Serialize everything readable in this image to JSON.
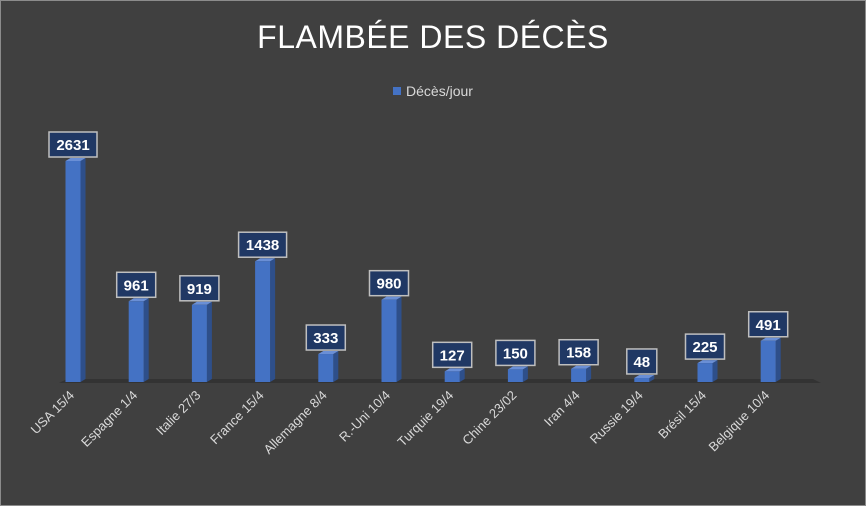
{
  "chart_data": {
    "type": "bar",
    "title": "FLAMBÉE DES DÉCÈS",
    "categories": [
      "USA 15/4",
      "Espagne 1/4",
      "Italie 27/3",
      "France 15/4",
      "Allemagne 8/4",
      "R.-Uni 10/4",
      "Turquie 19/4",
      "Chine 23/02",
      "Iran 4/4",
      "Russie 19/4",
      "Brésil 15/4",
      "Belgique 10/4"
    ],
    "series": [
      {
        "name": "Décès/jour",
        "values": [
          2631,
          961,
          919,
          1438,
          333,
          980,
          127,
          150,
          158,
          48,
          225,
          491
        ]
      }
    ],
    "data_labels": [
      "2631",
      "961",
      "919",
      "1438",
      "333",
      "980",
      "127",
      "150",
      "158",
      "48",
      "225",
      "491"
    ],
    "ylim": [
      0,
      2800
    ],
    "grid": false,
    "legend_position": "top",
    "style": "3d-column",
    "colors": {
      "background": "#404040",
      "bar": "#4472c4",
      "label_box": "#203864",
      "text": "#ffffff"
    }
  }
}
